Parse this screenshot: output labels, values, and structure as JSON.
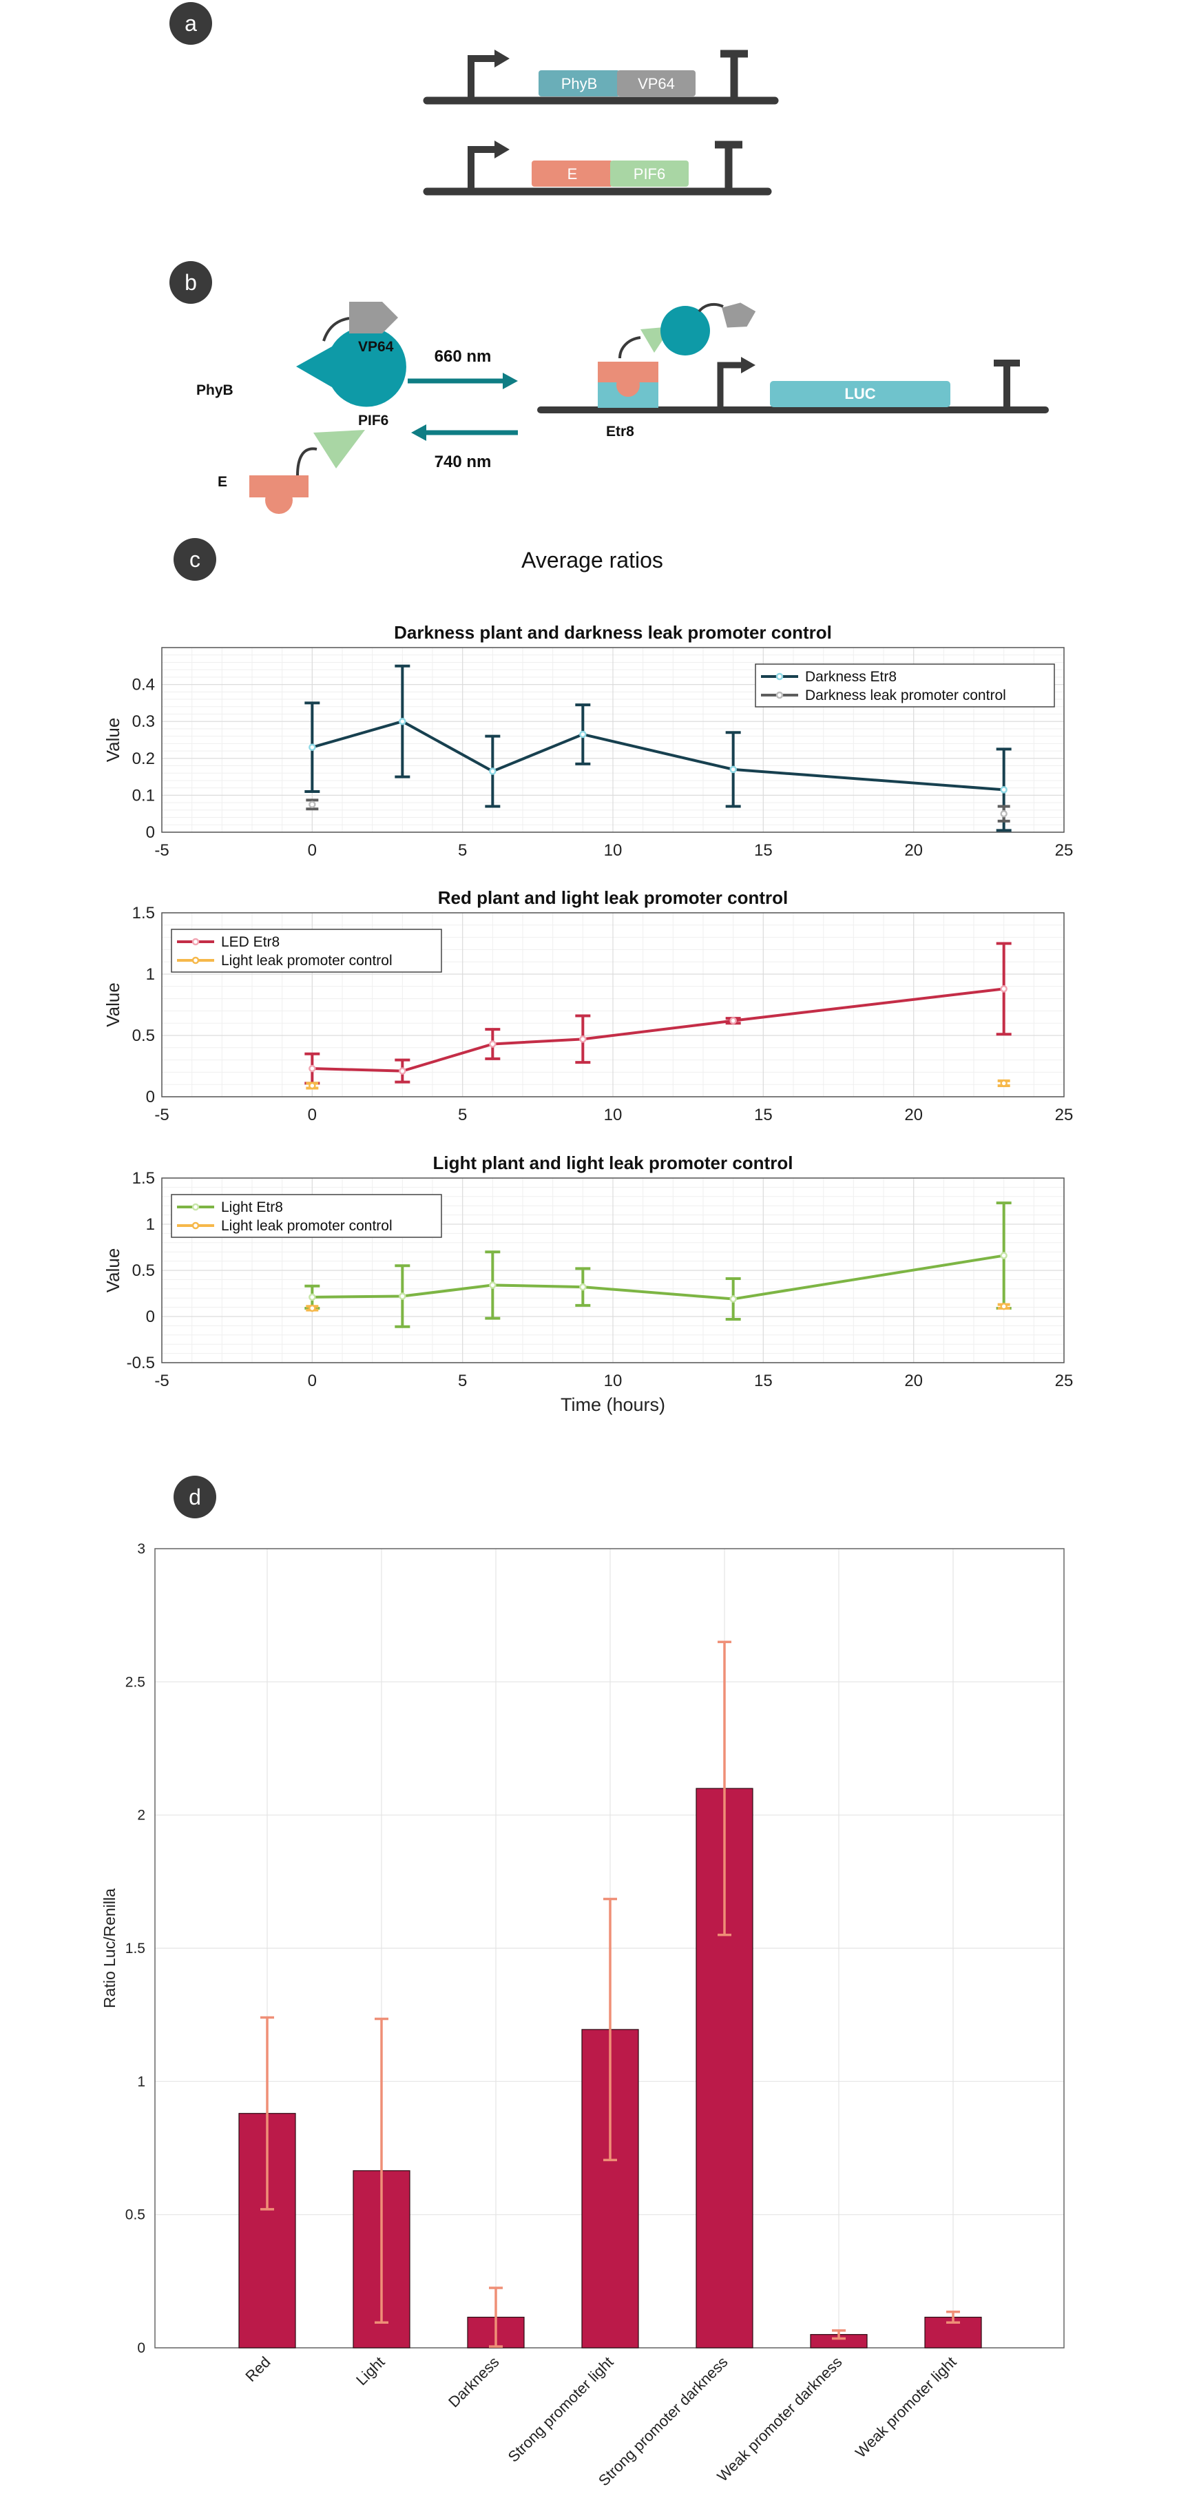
{
  "panel_labels": {
    "a": "a",
    "b": "b",
    "c": "c",
    "d": "d"
  },
  "colors": {
    "dark": "#3a3a3a",
    "teal": "#0e9aa7",
    "teal_dark": "#0f7d84",
    "teal_light": "#6fc3cc",
    "phyb_box": "#6aaeb8",
    "vp64_box": "#9a9a9a",
    "e_box": "#ea8e78",
    "pif6_box": "#a9d6a4",
    "darkness": "#17404f",
    "leak_dark": "#5e5e5e",
    "red": "#c42d47",
    "orange": "#f6b84a",
    "green": "#7db544",
    "bar": "#bb1a49",
    "bar_err": "#ef8f77",
    "grid": "#e6e6e6"
  },
  "panel_a": {
    "constructs": [
      [
        "PhyB",
        "VP64"
      ],
      [
        "E",
        "PIF6"
      ]
    ]
  },
  "panel_b": {
    "labels": {
      "phyb": "PhyB",
      "vp64": "VP64",
      "pif6": "PIF6",
      "e": "E",
      "nm660": "660 nm",
      "nm740": "740 nm",
      "etr8": "Etr8",
      "luc": "LUC"
    }
  },
  "panel_c_title": "Average ratios",
  "chart_data": [
    {
      "type": "line",
      "title": "Darkness plant and darkness leak promoter control",
      "xlabel": "",
      "ylabel": "Value",
      "xlim": [
        -5,
        25
      ],
      "ylim": [
        0,
        0.5
      ],
      "xticks": [
        -5,
        0,
        5,
        10,
        15,
        20,
        25
      ],
      "yticks": [
        0,
        0.1,
        0.2,
        0.3,
        0.4
      ],
      "grid": true,
      "legend_position": "top-right",
      "series": [
        {
          "name": "Darkness Etr8",
          "color": "#17404f",
          "marker_color": "#8fd9e6",
          "x": [
            0,
            3,
            6,
            9,
            14,
            23
          ],
          "y": [
            0.23,
            0.3,
            0.165,
            0.265,
            0.17,
            0.115
          ],
          "err": [
            0.12,
            0.15,
            0.095,
            0.08,
            0.1,
            0.11
          ]
        },
        {
          "name": "Darkness leak promoter control",
          "color": "#5e5e5e",
          "marker_color": "#bbbbbb",
          "line": false,
          "x": [
            0,
            23
          ],
          "y": [
            0.075,
            0.05
          ],
          "err": [
            0.012,
            0.02
          ]
        }
      ]
    },
    {
      "type": "line",
      "title": "Red plant and light leak promoter control",
      "xlabel": "",
      "ylabel": "Value",
      "xlim": [
        -5,
        25
      ],
      "ylim": [
        0,
        1.5
      ],
      "xticks": [
        -5,
        0,
        5,
        10,
        15,
        20,
        25
      ],
      "yticks": [
        0,
        0.5,
        1,
        1.5
      ],
      "grid": true,
      "legend_position": "top-left",
      "series": [
        {
          "name": "LED Etr8",
          "color": "#c42d47",
          "marker_color": "#f2a6b4",
          "x": [
            0,
            3,
            6,
            9,
            14,
            23
          ],
          "y": [
            0.23,
            0.21,
            0.43,
            0.47,
            0.62,
            0.88
          ],
          "err": [
            0.12,
            0.09,
            0.12,
            0.19,
            0.02,
            0.37
          ]
        },
        {
          "name": "Light leak promoter control",
          "color": "#f6b84a",
          "marker_color": "#f6b84a",
          "line": false,
          "x": [
            0,
            23
          ],
          "y": [
            0.09,
            0.11
          ],
          "err": [
            0.02,
            0.02
          ]
        }
      ]
    },
    {
      "type": "line",
      "title": "Light plant and light leak promoter control",
      "xlabel": "Time (hours)",
      "ylabel": "Value",
      "xlim": [
        -5,
        25
      ],
      "ylim": [
        -0.5,
        1.5
      ],
      "xticks": [
        -5,
        0,
        5,
        10,
        15,
        20,
        25
      ],
      "yticks": [
        -0.5,
        0,
        0.5,
        1,
        1.5
      ],
      "grid": true,
      "legend_position": "top-left",
      "series": [
        {
          "name": "Light Etr8",
          "color": "#7db544",
          "marker_color": "#c8e6a8",
          "x": [
            0,
            3,
            6,
            9,
            14,
            23
          ],
          "y": [
            0.21,
            0.22,
            0.34,
            0.32,
            0.19,
            0.66
          ],
          "err": [
            0.12,
            0.33,
            0.36,
            0.2,
            0.22,
            0.57
          ]
        },
        {
          "name": "Light leak promoter control",
          "color": "#f6b84a",
          "marker_color": "#f6b84a",
          "line": false,
          "x": [
            0,
            23
          ],
          "y": [
            0.09,
            0.11
          ],
          "err": [
            0.02,
            0.02
          ]
        }
      ]
    },
    {
      "type": "bar",
      "title": "",
      "xlabel": "",
      "ylabel": "Ratio Luc/Renilla",
      "ylim": [
        0,
        3
      ],
      "yticks": [
        0,
        0.5,
        1,
        1.5,
        2,
        2.5,
        3
      ],
      "grid": true,
      "categories": [
        "Red",
        "Light",
        "Darkness",
        "Strong promoter light",
        "Strong promoter darkness",
        "Weak promoter darkness",
        "Weak promoter light"
      ],
      "values": [
        0.88,
        0.665,
        0.115,
        1.195,
        2.1,
        0.05,
        0.115
      ],
      "errors": [
        0.36,
        0.57,
        0.11,
        0.49,
        0.55,
        0.015,
        0.02
      ]
    }
  ]
}
